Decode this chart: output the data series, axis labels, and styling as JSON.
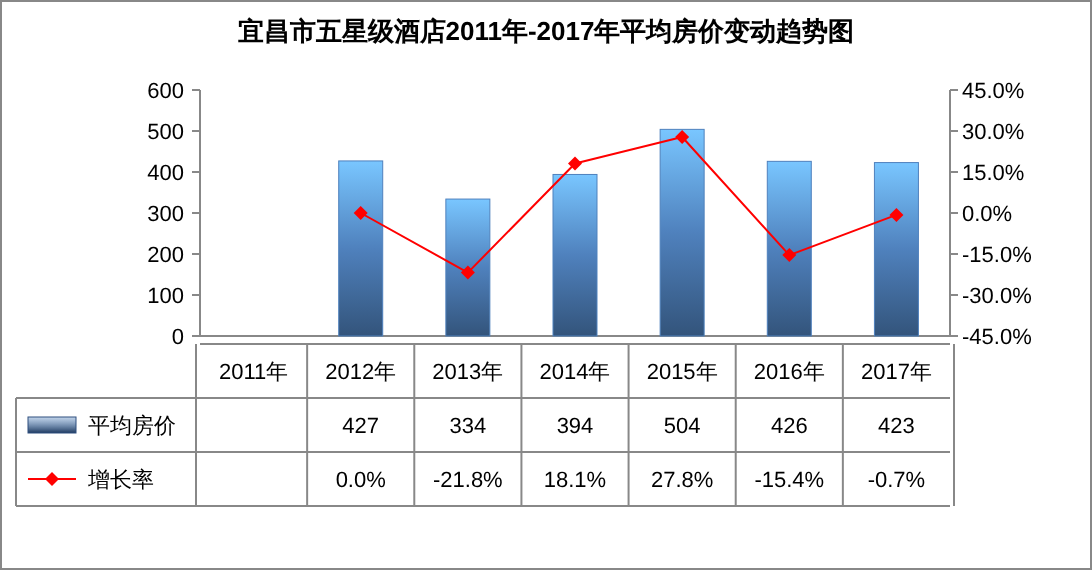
{
  "chart_data": {
    "type": "bar",
    "title": "宜昌市五星级酒店2011年-2017年平均房价变动趋势图",
    "categories": [
      "2011年",
      "2012年",
      "2013年",
      "2014年",
      "2015年",
      "2016年",
      "2017年"
    ],
    "series": [
      {
        "name": "平均房价",
        "color": "#4f81bd",
        "values": [
          null,
          427,
          334,
          394,
          504,
          426,
          423
        ],
        "value_labels": [
          null,
          "427",
          "334",
          "394",
          "504",
          "426",
          "423"
        ]
      },
      {
        "name": "增长率",
        "type": "line",
        "axis": "y2",
        "color": "#ff0000",
        "values": [
          null,
          0.0,
          -21.8,
          18.1,
          27.8,
          -15.4,
          -0.7
        ],
        "value_labels": [
          null,
          "0.0%",
          "-21.8%",
          "18.1%",
          "27.8%",
          "-15.4%",
          "-0.7%"
        ]
      }
    ],
    "ylim": [
      0,
      600
    ],
    "yticks": [
      0,
      100,
      200,
      300,
      400,
      500,
      600
    ],
    "y2lim": [
      -45,
      45
    ],
    "y2ticks": [
      {
        "value": -45,
        "label": "-45.0%"
      },
      {
        "value": -30,
        "label": "-30.0%"
      },
      {
        "value": -15,
        "label": "-15.0%"
      },
      {
        "value": 0,
        "label": "0.0%"
      },
      {
        "value": 15,
        "label": "15.0%"
      },
      {
        "value": 30,
        "label": "30.0%"
      },
      {
        "value": 45,
        "label": "45.0%"
      }
    ],
    "data_labels": true,
    "legend": "bottom",
    "marker": "diamond",
    "line_style": "solid",
    "grid": false
  }
}
